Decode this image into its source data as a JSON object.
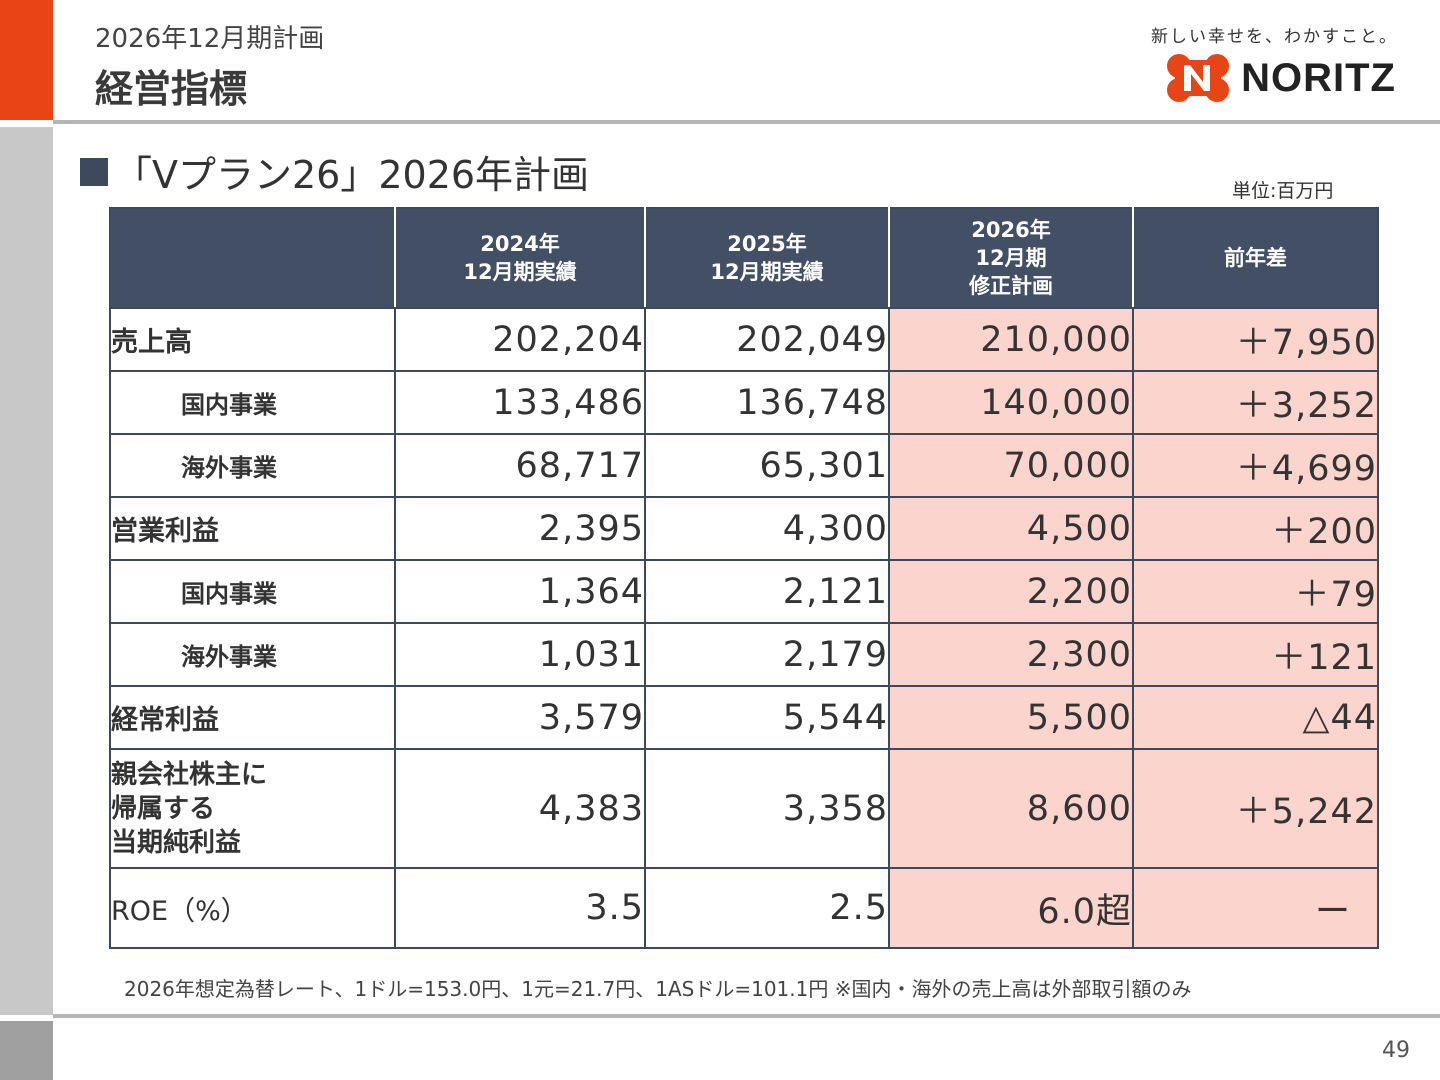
{
  "header": {
    "subtitle": "2026年12月期計画",
    "title": "経営指標",
    "tagline": "新しい幸せを、わかすこと。",
    "logo_text": "NORITZ"
  },
  "section": {
    "heading": "「Vプラン26」2026年計画",
    "unit": "単位:百万円"
  },
  "table": {
    "columns": [
      {
        "line1": "2024年",
        "line2": "12月期実績",
        "line3": ""
      },
      {
        "line1": "2025年",
        "line2": "12月期実績",
        "line3": ""
      },
      {
        "line1": "2026年",
        "line2": "12月期",
        "line3": "修正計画"
      },
      {
        "line1": "前年差",
        "line2": "",
        "line3": ""
      }
    ],
    "rows": [
      {
        "label": "売上高",
        "v2024": "202,204",
        "v2025": "202,049",
        "plan2026": "210,000",
        "diff": "＋7,950"
      },
      {
        "label": "国内事業",
        "v2024": "133,486",
        "v2025": "136,748",
        "plan2026": "140,000",
        "diff": "＋3,252"
      },
      {
        "label": "海外事業",
        "v2024": "68,717",
        "v2025": "65,301",
        "plan2026": "70,000",
        "diff": "＋4,699"
      },
      {
        "label": "営業利益",
        "v2024": "2,395",
        "v2025": "4,300",
        "plan2026": "4,500",
        "diff": "＋200"
      },
      {
        "label": "国内事業",
        "v2024": "1,364",
        "v2025": "2,121",
        "plan2026": "2,200",
        "diff": "＋79"
      },
      {
        "label": "海外事業",
        "v2024": "1,031",
        "v2025": "2,179",
        "plan2026": "2,300",
        "diff": "＋121"
      },
      {
        "label": "経常利益",
        "v2024": "3,579",
        "v2025": "5,544",
        "plan2026": "5,500",
        "diff": "△44"
      },
      {
        "label_lines": [
          "親会社株主に",
          "帰属する",
          "当期純利益"
        ],
        "v2024": "4,383",
        "v2025": "3,358",
        "plan2026": "8,600",
        "diff": "＋5,242"
      },
      {
        "label": "ROE（%）",
        "v2024": "3.5",
        "v2025": "2.5",
        "plan2026": "6.0超",
        "diff": "ー"
      }
    ]
  },
  "footnote": "2026年想定為替レート、1ドル=153.0円、1元=21.7円、1ASドル=101.1円  ※国内・海外の売上高は外部取引額のみ",
  "page_number": "49",
  "colors": {
    "accent": "#e94416",
    "header_fill": "#434f65",
    "plan_fill": "#fbd5cd"
  }
}
